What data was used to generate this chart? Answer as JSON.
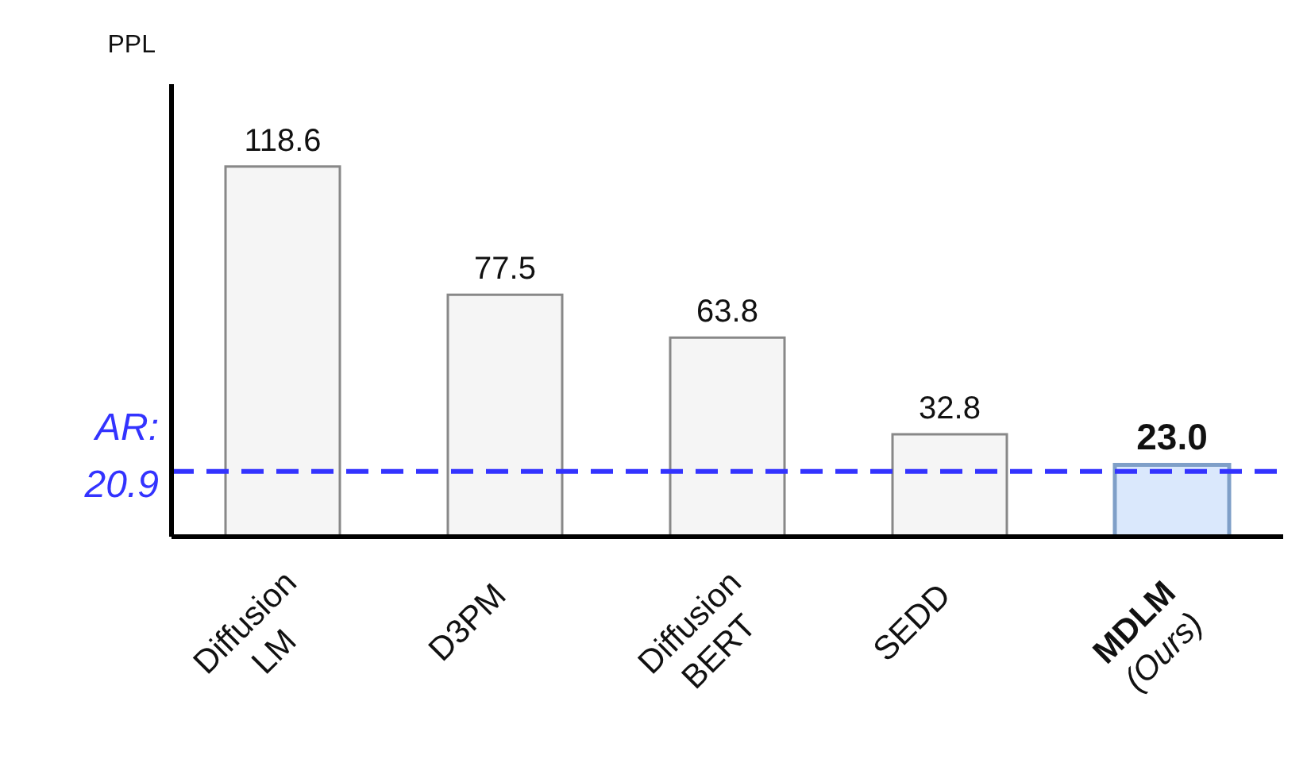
{
  "chart_data": {
    "type": "bar",
    "ylabel": "PPL",
    "categories": [
      "Diffusion LM",
      "D3PM",
      "Diffusion BERT",
      "SEDD",
      "MDLM (Ours)"
    ],
    "values": [
      118.6,
      77.5,
      63.8,
      32.8,
      23.0
    ],
    "value_labels": [
      "118.6",
      "77.5",
      "63.8",
      "32.8",
      "23.0"
    ],
    "colors": [
      "#f5f5f5",
      "#f5f5f5",
      "#f5f5f5",
      "#f5f5f5",
      "#dae8fc"
    ],
    "ylim": [
      0,
      145
    ],
    "ref_lines": [
      {
        "axis": "y",
        "value": 20.9,
        "label": "AR: 20.9",
        "color": "#3333ff",
        "line_style": "dashed"
      }
    ],
    "tick_labels": "x",
    "grid": false,
    "legend": false
  }
}
